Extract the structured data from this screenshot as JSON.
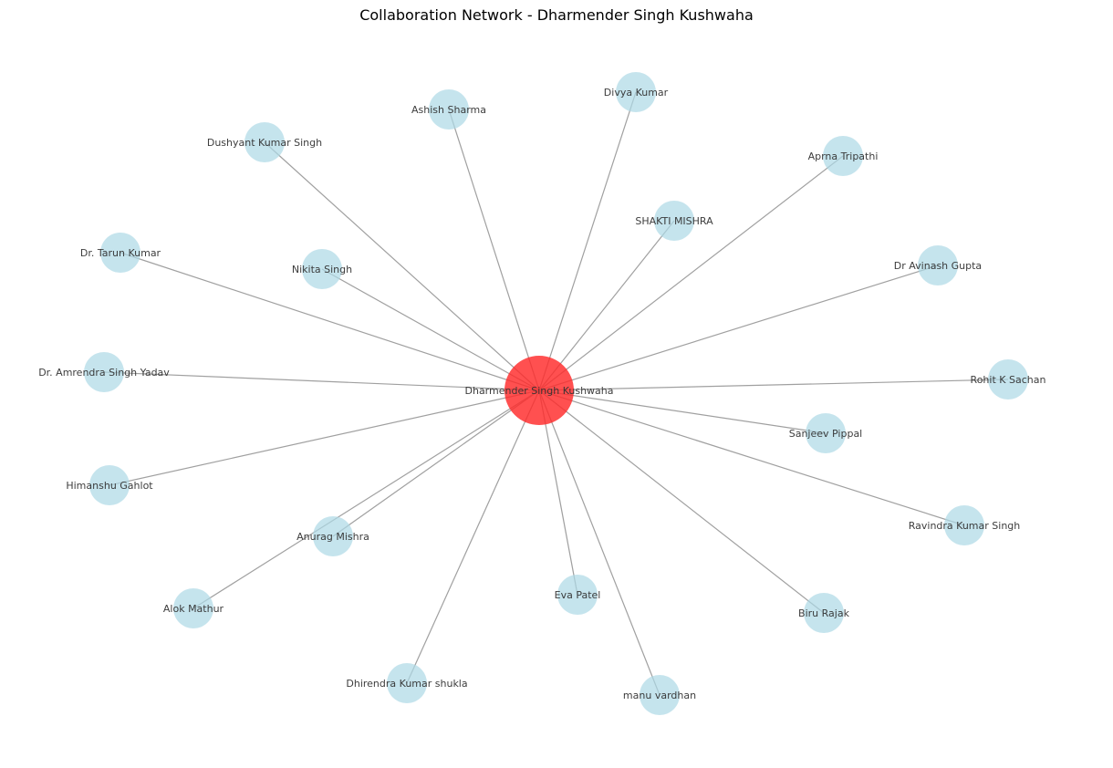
{
  "title": "Collaboration Network - Dharmender Singh Kushwaha",
  "colors": {
    "center_node": "#ff2a2a",
    "collaborator_node": "#add8e6",
    "edge": "#a0a0a0",
    "label": "#333333"
  },
  "graph": {
    "center": {
      "id": "dharmender",
      "label": "Dharmender Singh Kushwaha"
    },
    "nodes": [
      {
        "id": "divya",
        "label": "Divya  Kumar"
      },
      {
        "id": "ashish",
        "label": "Ashish Sharma"
      },
      {
        "id": "dushyant",
        "label": "Dushyant Kumar Singh"
      },
      {
        "id": "aprna",
        "label": "Aprna Tripathi"
      },
      {
        "id": "shakti",
        "label": "SHAKTI MISHRA"
      },
      {
        "id": "tarun",
        "label": "Dr. Tarun Kumar"
      },
      {
        "id": "nikita",
        "label": "Nikita Singh"
      },
      {
        "id": "avinash",
        "label": "Dr Avinash Gupta"
      },
      {
        "id": "amrendra",
        "label": "Dr. Amrendra Singh Yadav"
      },
      {
        "id": "rohit",
        "label": "Rohit K Sachan"
      },
      {
        "id": "sanjeev",
        "label": "Sanjeev Pippal"
      },
      {
        "id": "himanshu",
        "label": "Himanshu Gahlot"
      },
      {
        "id": "ravindra",
        "label": "Ravindra Kumar Singh"
      },
      {
        "id": "anurag",
        "label": "Anurag Mishra"
      },
      {
        "id": "eva",
        "label": "Eva Patel"
      },
      {
        "id": "biru",
        "label": "Biru Rajak"
      },
      {
        "id": "alok",
        "label": "Alok Mathur"
      },
      {
        "id": "dhirendra",
        "label": "Dhirendra Kumar shukla"
      },
      {
        "id": "manu",
        "label": "manu vardhan"
      }
    ],
    "edges": [
      [
        "dharmender",
        "divya"
      ],
      [
        "dharmender",
        "ashish"
      ],
      [
        "dharmender",
        "dushyant"
      ],
      [
        "dharmender",
        "aprna"
      ],
      [
        "dharmender",
        "shakti"
      ],
      [
        "dharmender",
        "tarun"
      ],
      [
        "dharmender",
        "nikita"
      ],
      [
        "dharmender",
        "avinash"
      ],
      [
        "dharmender",
        "amrendra"
      ],
      [
        "dharmender",
        "rohit"
      ],
      [
        "dharmender",
        "sanjeev"
      ],
      [
        "dharmender",
        "himanshu"
      ],
      [
        "dharmender",
        "ravindra"
      ],
      [
        "dharmender",
        "anurag"
      ],
      [
        "dharmender",
        "eva"
      ],
      [
        "dharmender",
        "biru"
      ],
      [
        "dharmender",
        "alok"
      ],
      [
        "dharmender",
        "dhirendra"
      ],
      [
        "dharmender",
        "manu"
      ]
    ]
  }
}
